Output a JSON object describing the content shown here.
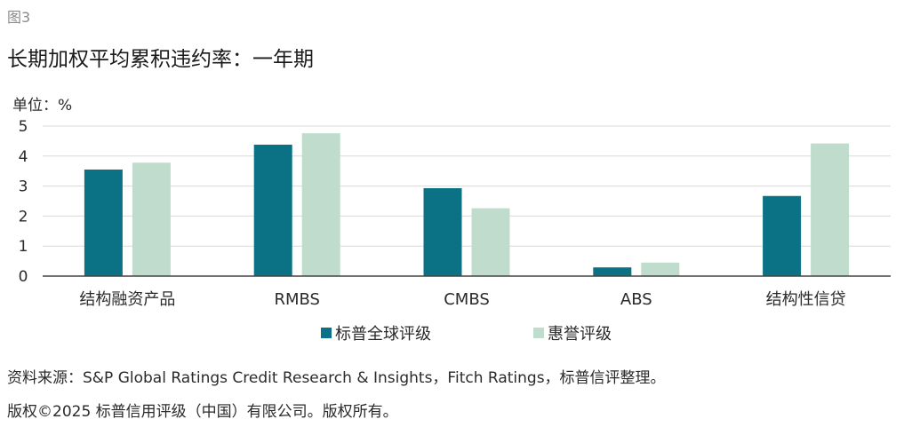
{
  "figure_label": "图3",
  "title": "长期加权平均累积违约率：一年期",
  "unit_label": "单位：%",
  "source_text": "资料来源：S&P Global Ratings Credit Research & Insights，Fitch Ratings，标普信评整理。",
  "copyright_text": "版权©2025 标普信用评级（中国）有限公司。版权所有。",
  "chart_data": {
    "type": "bar",
    "categories": [
      "结构融资产品",
      "RMBS",
      "CMBS",
      "ABS",
      "结构性信贷"
    ],
    "series": [
      {
        "name": "标普全球评级",
        "color": "#0b7285",
        "values": [
          3.55,
          4.38,
          2.93,
          0.29,
          2.67
        ]
      },
      {
        "name": "惠誉评级",
        "color": "#bfdccd",
        "values": [
          3.78,
          4.76,
          2.26,
          0.45,
          4.42
        ]
      }
    ],
    "ylim": [
      0,
      5
    ],
    "yticks": [
      0,
      1,
      2,
      3,
      4,
      5
    ],
    "grid": true,
    "legend_position": "bottom"
  }
}
